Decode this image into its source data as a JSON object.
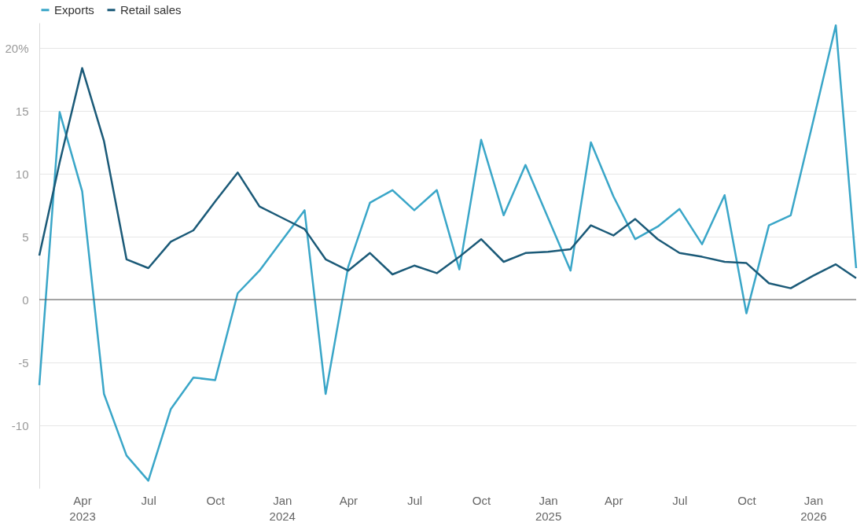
{
  "chart_data": {
    "type": "line",
    "x": [
      "2023-02",
      "2023-03",
      "2023-04",
      "2023-05",
      "2023-06",
      "2023-07",
      "2023-08",
      "2023-09",
      "2023-10",
      "2023-11",
      "2023-12",
      "2024-01",
      "2024-02",
      "2024-03",
      "2024-04",
      "2024-05",
      "2024-06",
      "2024-07",
      "2024-08",
      "2024-09",
      "2024-10",
      "2024-11",
      "2024-12",
      "2025-01",
      "2025-02",
      "2025-03",
      "2025-04",
      "2025-05",
      "2025-06",
      "2025-07",
      "2025-08",
      "2025-09",
      "2025-10",
      "2025-11",
      "2025-12",
      "2026-01",
      "2026-02",
      "2026-03"
    ],
    "series": [
      {
        "name": "Exports",
        "color": "#3aa6c8",
        "values": [
          -6.8,
          14.9,
          8.6,
          -7.5,
          -12.4,
          -14.4,
          -8.7,
          -6.2,
          -6.4,
          0.5,
          2.3,
          4.7,
          7.1,
          -7.5,
          2.6,
          7.7,
          8.7,
          7.1,
          8.7,
          2.4,
          12.7,
          6.7,
          10.7,
          6.5,
          2.3,
          12.5,
          8.2,
          4.8,
          5.8,
          7.2,
          4.4,
          8.3,
          -1.1,
          5.9,
          6.7,
          14.2,
          21.8,
          2.5
        ]
      },
      {
        "name": "Retail sales",
        "color": "#1b5a78",
        "values": [
          3.5,
          10.9,
          18.4,
          12.6,
          3.2,
          2.5,
          4.6,
          5.5,
          7.8,
          10.1,
          7.4,
          6.5,
          5.6,
          3.2,
          2.3,
          3.7,
          2.0,
          2.7,
          2.1,
          3.4,
          4.8,
          3.0,
          3.7,
          3.8,
          4.0,
          5.9,
          5.1,
          6.4,
          4.8,
          3.7,
          3.4,
          3.0,
          2.9,
          1.3,
          0.9,
          1.9,
          2.8,
          1.7
        ]
      }
    ],
    "xlim": [
      "2023-02",
      "2026-03"
    ],
    "xticks": [
      {
        "value": "2023-04",
        "label": "Apr 2023"
      },
      {
        "value": "2023-07",
        "label": "Jul"
      },
      {
        "value": "2023-10",
        "label": "Oct"
      },
      {
        "value": "2024-01",
        "label": "Jan 2024"
      },
      {
        "value": "2024-04",
        "label": "Apr"
      },
      {
        "value": "2024-07",
        "label": "Jul"
      },
      {
        "value": "2024-10",
        "label": "Oct"
      },
      {
        "value": "2025-01",
        "label": "Jan 2025"
      },
      {
        "value": "2025-04",
        "label": "Apr"
      },
      {
        "value": "2025-07",
        "label": "Jul"
      },
      {
        "value": "2025-10",
        "label": "Oct"
      },
      {
        "value": "2026-01",
        "label": "Jan 2026"
      }
    ],
    "ylim": [
      -15,
      22
    ],
    "yticks": [
      -10,
      -5,
      0,
      5,
      10,
      15,
      {
        "value": 20,
        "label": "20%"
      }
    ],
    "ref_lines": [
      {
        "axis": "y",
        "value": 0,
        "color": "#555555"
      }
    ],
    "grid": "y",
    "legend": "top left",
    "marker": "none",
    "line_style": "solid"
  }
}
